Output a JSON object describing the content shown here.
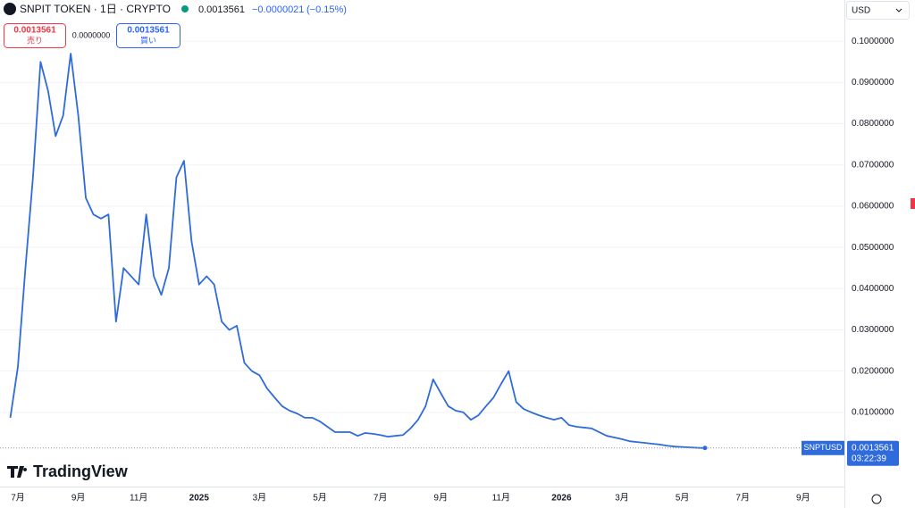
{
  "chart_data": {
    "type": "line",
    "title": "SNPIT TOKEN · 1日 · CRYPTO",
    "header": {
      "price": "0.0013561",
      "change": "−0.0000021",
      "change_pct": "(−0.15%)"
    },
    "trade": {
      "sell_price": "0.0013561",
      "sell_label": "売り",
      "spread": "0.0000000",
      "buy_price": "0.0013561",
      "buy_label": "買い"
    },
    "currency": "USD",
    "brand": "TradingView",
    "symbol_label": "SNPTUSD",
    "last_price_label": "0.0013561",
    "countdown": "03:22:39",
    "categories": [
      null,
      "7月",
      null,
      null,
      null,
      null,
      null,
      null,
      null,
      "9月",
      null,
      null,
      null,
      null,
      null,
      null,
      null,
      "11月",
      null,
      null,
      null,
      null,
      null,
      null,
      null,
      "2025",
      null,
      null,
      null,
      null,
      null,
      null,
      null,
      "3月",
      null,
      null,
      null,
      null,
      null,
      null,
      null,
      "5月",
      null,
      null,
      null,
      null,
      null,
      null,
      null,
      "7月",
      null,
      null,
      null,
      null,
      null,
      null,
      null,
      "9月",
      null,
      null,
      null,
      null,
      null,
      null,
      null,
      "11月",
      null,
      null,
      null,
      null,
      null,
      null,
      null,
      "2026",
      null,
      null,
      null,
      null,
      null,
      null,
      null,
      "3月",
      null,
      null,
      null,
      null,
      null,
      null,
      null,
      "5月",
      null,
      null,
      null,
      null,
      null,
      null,
      null,
      "7月",
      null,
      null,
      null,
      null,
      null,
      null,
      null,
      "9月"
    ],
    "series": [
      {
        "name": "SNPTUSD",
        "color": "#2f6bdb",
        "values": [
          0.0087,
          0.021,
          0.045,
          0.067,
          0.095,
          0.088,
          0.077,
          0.082,
          0.097,
          0.082,
          0.062,
          0.058,
          0.057,
          0.058,
          0.032,
          0.045,
          0.043,
          0.041,
          0.058,
          0.043,
          0.0385,
          0.045,
          0.067,
          0.071,
          0.0515,
          0.041,
          0.043,
          0.041,
          0.032,
          0.03,
          0.031,
          0.022,
          0.02,
          0.019,
          0.0158,
          0.0136,
          0.0115,
          0.0104,
          0.0097,
          0.0087,
          0.0087,
          0.0078,
          0.0065,
          0.0052,
          0.0052,
          0.0052,
          0.0043,
          0.005,
          0.0048,
          0.0045,
          0.0041,
          0.0043,
          0.0045,
          0.0061,
          0.0082,
          0.0115,
          0.018,
          0.0147,
          0.0115,
          0.0104,
          0.01,
          0.0082,
          0.0093,
          0.0115,
          0.0136,
          0.0169,
          0.02,
          0.0125,
          0.0108,
          0.01,
          0.0093,
          0.0087,
          0.0082,
          0.0087,
          0.0069,
          0.0065,
          0.0063,
          0.0061,
          0.0052,
          0.0043,
          0.0039,
          0.0035,
          0.003,
          0.0028,
          0.0026,
          0.0024,
          0.0022,
          0.0019,
          0.0017,
          0.0016,
          0.0015,
          0.0014,
          0.0013561,
          null,
          null,
          null,
          null,
          null,
          null,
          null,
          null,
          null,
          null,
          null,
          null,
          null
        ]
      }
    ],
    "ylim": [
      -0.008,
      0.11
    ],
    "yticks": [
      {
        "value": 0.01,
        "label": "0.0100000"
      },
      {
        "value": 0.02,
        "label": "0.0200000"
      },
      {
        "value": 0.03,
        "label": "0.0300000"
      },
      {
        "value": 0.04,
        "label": "0.0400000"
      },
      {
        "value": 0.05,
        "label": "0.0500000"
      },
      {
        "value": 0.06,
        "label": "0.0600000"
      },
      {
        "value": 0.07,
        "label": "0.0700000"
      },
      {
        "value": 0.08,
        "label": "0.0800000"
      },
      {
        "value": 0.09,
        "label": "0.0900000"
      },
      {
        "value": 0.1,
        "label": "0.1000000"
      }
    ],
    "grid": true
  }
}
